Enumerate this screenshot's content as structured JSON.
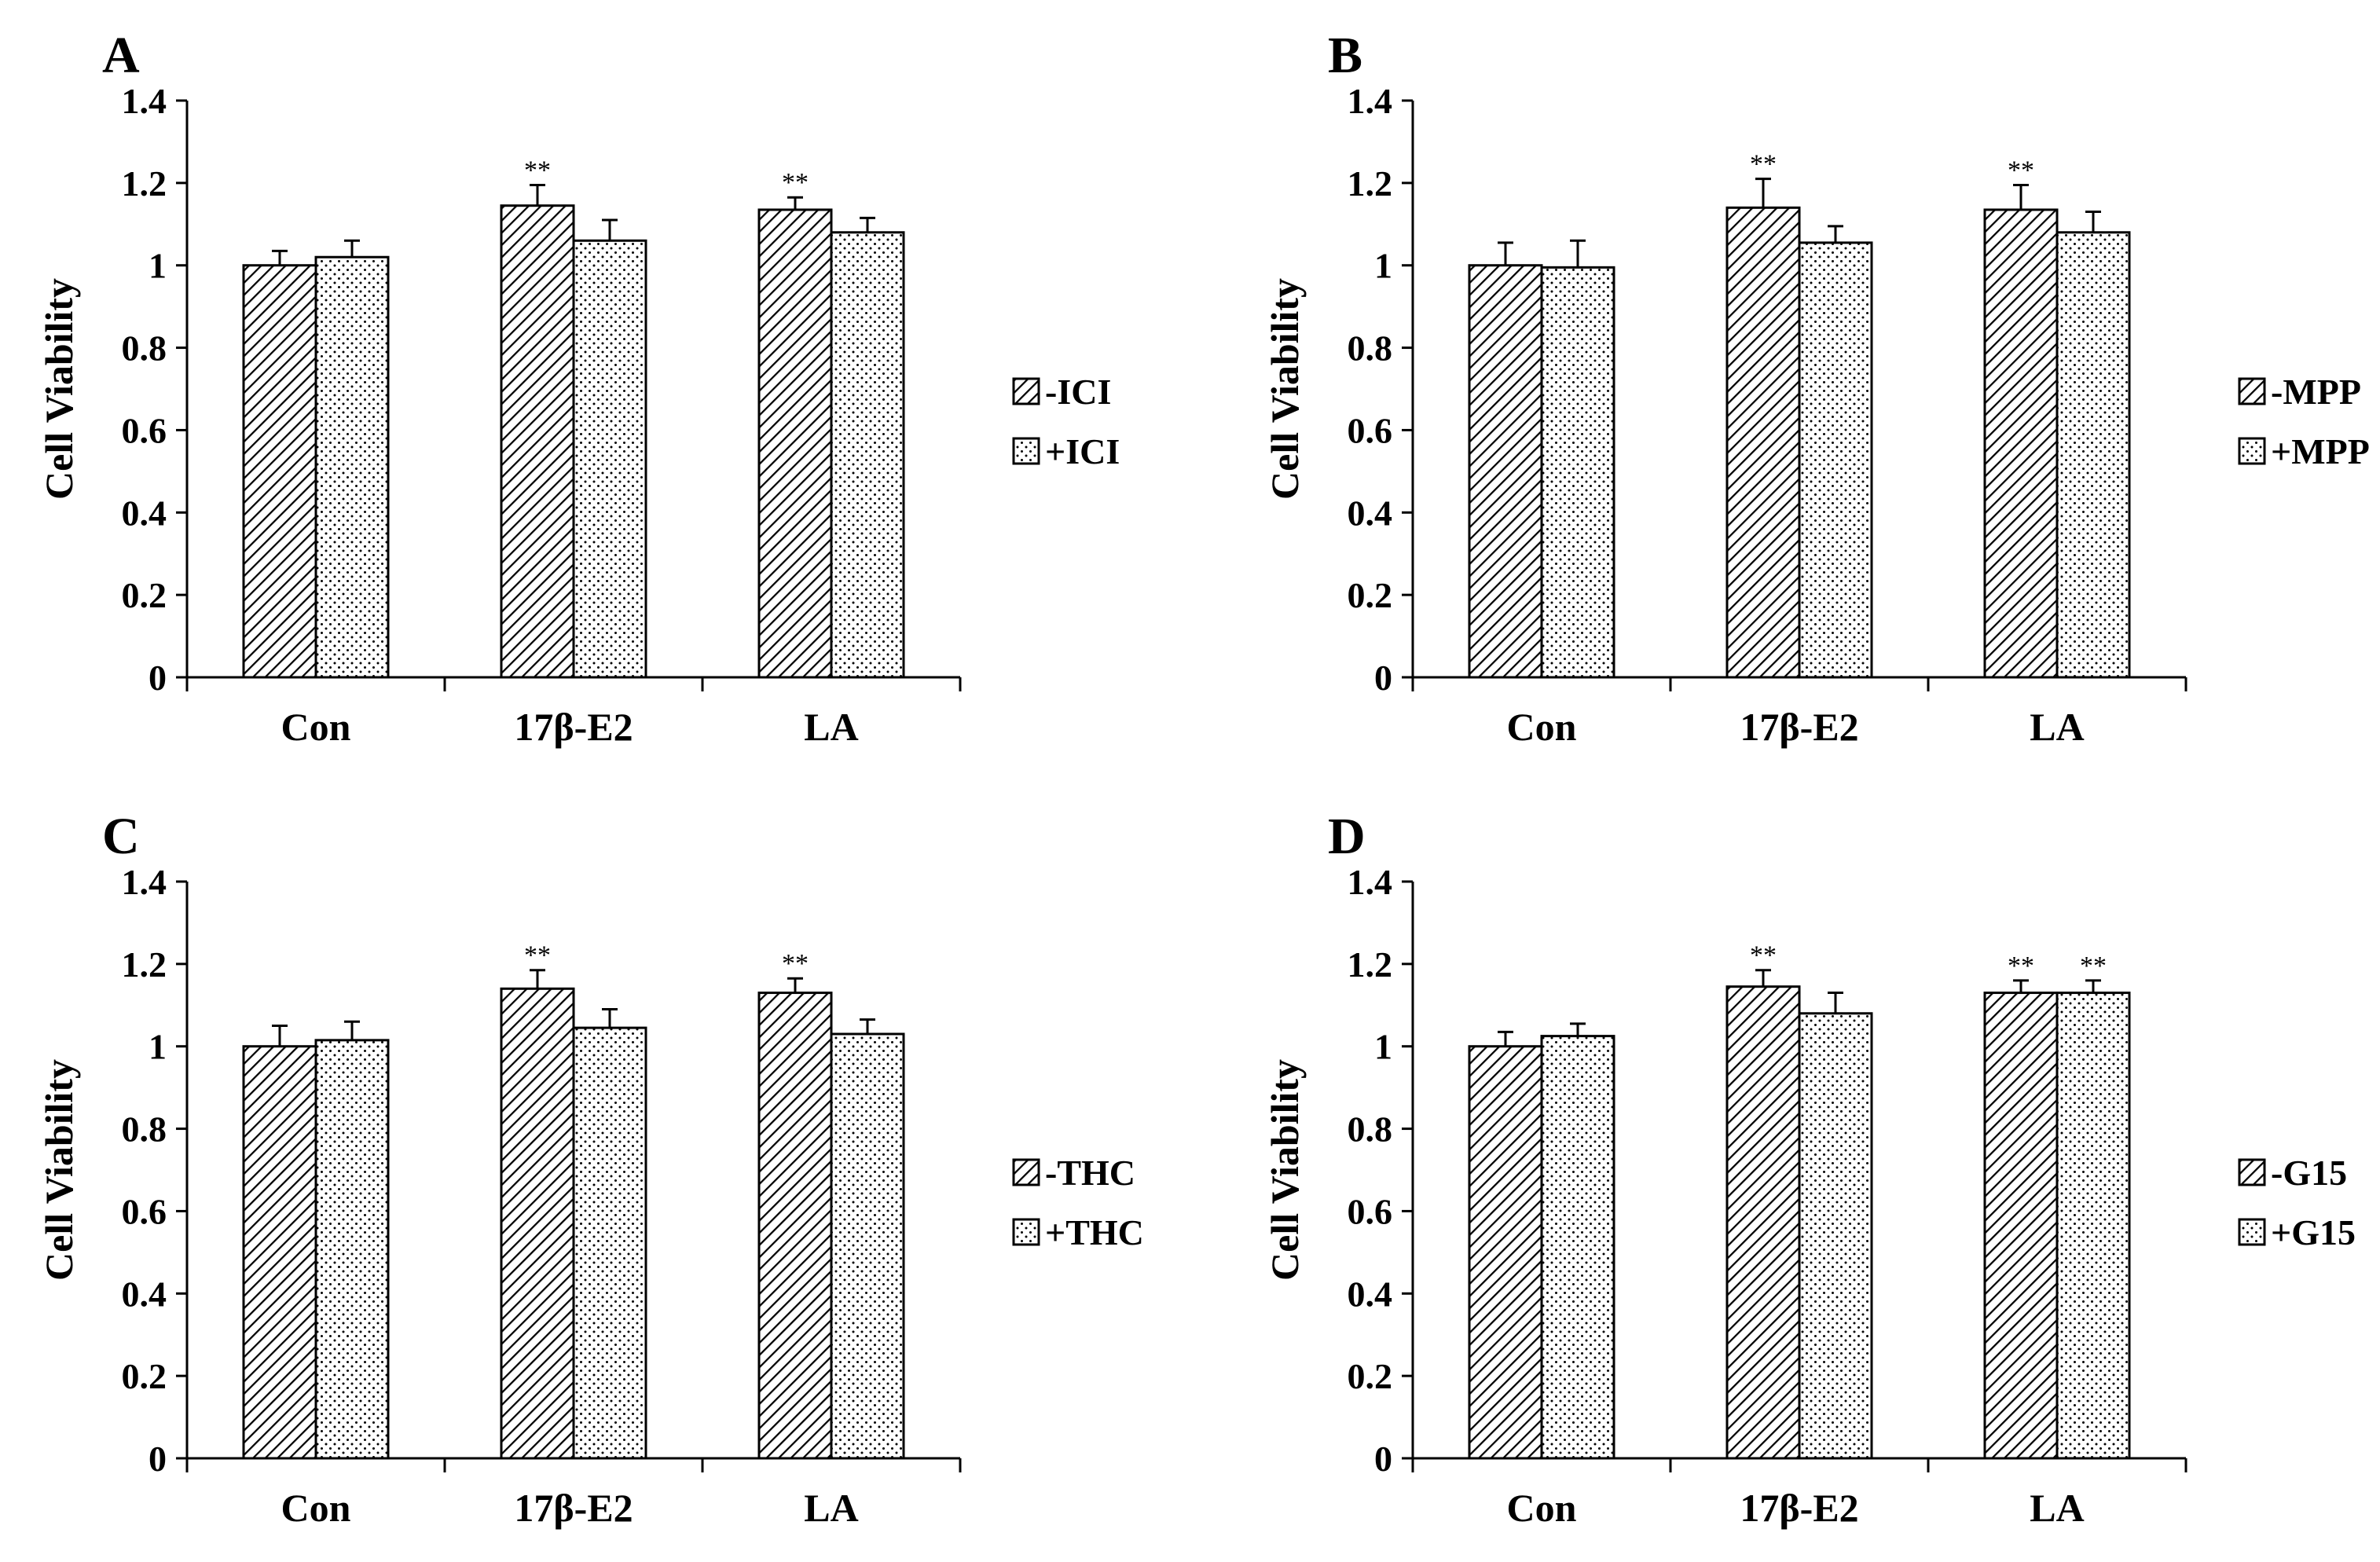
{
  "figure": {
    "panels": [
      {
        "letter": "A",
        "chart_data": {
          "type": "bar",
          "categories": [
            "Con",
            "17β-E2",
            "LA"
          ],
          "series": [
            {
              "name": "-ICI",
              "pattern": "hatch",
              "values": [
                1.0,
                1.145,
                1.135
              ],
              "errors": [
                0.035,
                0.05,
                0.03
              ],
              "sig": [
                "",
                "**",
                "**"
              ]
            },
            {
              "name": "+ICI",
              "pattern": "dots",
              "values": [
                1.02,
                1.06,
                1.08
              ],
              "errors": [
                0.04,
                0.05,
                0.035
              ],
              "sig": [
                "",
                "",
                ""
              ]
            }
          ],
          "ylabel": "Cell Viability",
          "xlabel": "",
          "ylim": [
            0,
            1.4
          ],
          "yticks": [
            "0",
            "0.2",
            "0.4",
            "0.6",
            "0.8",
            "1",
            "1.2",
            "1.4"
          ],
          "legend_position": "right"
        }
      },
      {
        "letter": "B",
        "chart_data": {
          "type": "bar",
          "categories": [
            "Con",
            "17β-E2",
            "LA"
          ],
          "series": [
            {
              "name": "-MPP",
              "pattern": "hatch",
              "values": [
                1.0,
                1.14,
                1.135
              ],
              "errors": [
                0.055,
                0.07,
                0.06
              ],
              "sig": [
                "",
                "**",
                "**"
              ]
            },
            {
              "name": "+MPP",
              "pattern": "dots",
              "values": [
                0.995,
                1.055,
                1.08
              ],
              "errors": [
                0.065,
                0.04,
                0.05
              ],
              "sig": [
                "",
                "",
                ""
              ]
            }
          ],
          "ylabel": "Cell Viability",
          "xlabel": "",
          "ylim": [
            0,
            1.4
          ],
          "yticks": [
            "0",
            "0.2",
            "0.4",
            "0.6",
            "0.8",
            "1",
            "1.2",
            "1.4"
          ],
          "legend_position": "right"
        }
      },
      {
        "letter": "C",
        "chart_data": {
          "type": "bar",
          "categories": [
            "Con",
            "17β-E2",
            "LA"
          ],
          "series": [
            {
              "name": "-THC",
              "pattern": "hatch",
              "values": [
                1.0,
                1.14,
                1.13
              ],
              "errors": [
                0.05,
                0.045,
                0.035
              ],
              "sig": [
                "",
                "**",
                "**"
              ]
            },
            {
              "name": "+THC",
              "pattern": "dots",
              "values": [
                1.015,
                1.045,
                1.03
              ],
              "errors": [
                0.045,
                0.045,
                0.035
              ],
              "sig": [
                "",
                "",
                ""
              ]
            }
          ],
          "ylabel": "Cell Viability",
          "xlabel": "",
          "ylim": [
            0,
            1.4
          ],
          "yticks": [
            "0",
            "0.2",
            "0.4",
            "0.6",
            "0.8",
            "1",
            "1.2",
            "1.4"
          ],
          "legend_position": "right"
        }
      },
      {
        "letter": "D",
        "chart_data": {
          "type": "bar",
          "categories": [
            "Con",
            "17β-E2",
            "LA"
          ],
          "series": [
            {
              "name": "-G15",
              "pattern": "hatch",
              "values": [
                1.0,
                1.145,
                1.13
              ],
              "errors": [
                0.035,
                0.04,
                0.03
              ],
              "sig": [
                "",
                "**",
                "**"
              ]
            },
            {
              "name": "+G15",
              "pattern": "dots",
              "values": [
                1.025,
                1.08,
                1.13
              ],
              "errors": [
                0.03,
                0.05,
                0.03
              ],
              "sig": [
                "",
                "",
                "**"
              ]
            }
          ],
          "ylabel": "Cell Viability",
          "xlabel": "",
          "ylim": [
            0,
            1.4
          ],
          "yticks": [
            "0",
            "0.2",
            "0.4",
            "0.6",
            "0.8",
            "1",
            "1.2",
            "1.4"
          ],
          "legend_position": "right"
        }
      }
    ]
  },
  "colors": {
    "axis": "#000000",
    "bar_stroke": "#000000",
    "hatch_line": "#000000",
    "dot_fill": "#000000",
    "background": "#ffffff"
  }
}
